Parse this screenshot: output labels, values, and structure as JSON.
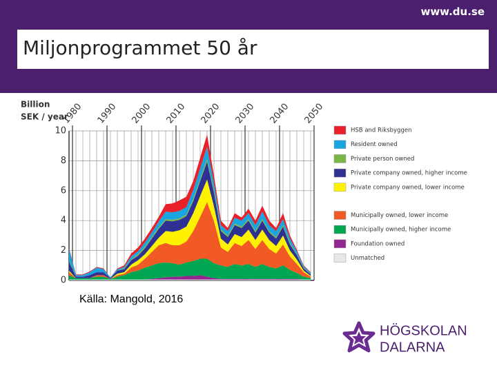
{
  "slide": {
    "url": "www.du.se",
    "title": "Miljonprogrammet 50 år",
    "source": "Källa: Mangold, 2016",
    "logo": [
      "HÖGSKOLAN",
      "DALARNA"
    ]
  },
  "chart_data": {
    "type": "stacked_area",
    "ylabel": [
      "Billion",
      "SEK / year"
    ],
    "xlim": [
      1979,
      2050
    ],
    "xticks": [
      1980,
      1990,
      2000,
      2010,
      2020,
      2030,
      2040,
      2050
    ],
    "ylim": [
      0,
      10
    ],
    "yticks": [
      0,
      2,
      4,
      6,
      8,
      10
    ],
    "grid": true,
    "x": [
      1979,
      1981,
      1983,
      1985,
      1987,
      1989,
      1991,
      1993,
      1995,
      1997,
      1999,
      2001,
      2003,
      2005,
      2007,
      2009,
      2011,
      2013,
      2015,
      2017,
      2019,
      2021,
      2023,
      2025,
      2027,
      2029,
      2031,
      2033,
      2035,
      2037,
      2039,
      2041,
      2043,
      2045,
      2047,
      2049
    ],
    "series": [
      {
        "name": "Unmatched",
        "color": "#e6e7e8",
        "values": [
          0.05,
          0.05,
          0.05,
          0.05,
          0.05,
          0.05,
          0.05,
          0.05,
          0.05,
          0.05,
          0.05,
          0.05,
          0.05,
          0.05,
          0.05,
          0.05,
          0.05,
          0.05,
          0.05,
          0.05,
          0.05,
          0.05,
          0.05,
          0.05,
          0.05,
          0.05,
          0.05,
          0.05,
          0.05,
          0.05,
          0.05,
          0.05,
          0.05,
          0.05,
          0.05,
          0.05
        ]
      },
      {
        "name": "Foundation owned",
        "color": "#92278f",
        "values": [
          0,
          0,
          0,
          0,
          0,
          0,
          0,
          0,
          0,
          0,
          0,
          0,
          0.05,
          0.1,
          0.15,
          0.2,
          0.2,
          0.25,
          0.25,
          0.3,
          0.2,
          0.1,
          0.05,
          0.05,
          0.05,
          0.05,
          0.05,
          0.05,
          0.05,
          0.05,
          0.05,
          0.05,
          0.05,
          0.05,
          0,
          0
        ]
      },
      {
        "name": "Municipally owned, higher income",
        "color": "#00a651",
        "values": [
          0.3,
          0.1,
          0.1,
          0.1,
          0.2,
          0.2,
          0.05,
          0.2,
          0.3,
          0.5,
          0.6,
          0.8,
          0.9,
          1.0,
          1.0,
          0.9,
          0.8,
          0.9,
          1.0,
          1.1,
          1.2,
          1.0,
          0.9,
          0.8,
          1.0,
          0.9,
          1.0,
          0.8,
          1.0,
          0.8,
          0.7,
          0.9,
          0.6,
          0.4,
          0.2,
          0.1
        ]
      },
      {
        "name": "Municipally owned, lower income",
        "color": "#f15a24",
        "values": [
          0.2,
          0,
          0,
          0,
          0.1,
          0.1,
          0,
          0.1,
          0.1,
          0.3,
          0.4,
          0.6,
          0.9,
          1.2,
          1.3,
          1.2,
          1.3,
          1.4,
          2.0,
          2.8,
          3.8,
          2.8,
          1.2,
          1.0,
          1.4,
          1.3,
          1.6,
          1.2,
          1.6,
          1.2,
          1.0,
          1.4,
          0.9,
          0.6,
          0.3,
          0.1
        ]
      },
      {
        "name": "Private company owned, lower income",
        "color": "#fff200",
        "values": [
          0.1,
          0,
          0,
          0,
          0,
          0,
          0,
          0.1,
          0.1,
          0.2,
          0.3,
          0.3,
          0.4,
          0.5,
          0.8,
          0.9,
          1.0,
          1.0,
          1.2,
          1.4,
          1.5,
          1.0,
          0.6,
          0.5,
          0.6,
          0.6,
          0.7,
          0.6,
          0.7,
          0.6,
          0.5,
          0.6,
          0.4,
          0.3,
          0.1,
          0.05
        ]
      },
      {
        "name": "Private company owned, higher income",
        "color": "#2e3192",
        "values": [
          0.6,
          0.1,
          0.1,
          0.2,
          0.2,
          0.2,
          0.05,
          0.2,
          0.2,
          0.3,
          0.3,
          0.4,
          0.5,
          0.6,
          0.7,
          0.7,
          0.7,
          0.7,
          0.8,
          1.0,
          1.2,
          0.9,
          0.5,
          0.5,
          0.6,
          0.6,
          0.6,
          0.5,
          0.6,
          0.5,
          0.5,
          0.6,
          0.4,
          0.3,
          0.15,
          0.1
        ]
      },
      {
        "name": "Private person owned",
        "color": "#7ab648",
        "values": [
          0.1,
          0,
          0,
          0,
          0,
          0,
          0,
          0,
          0.05,
          0.05,
          0.1,
          0.1,
          0.1,
          0.1,
          0.1,
          0.1,
          0.1,
          0.1,
          0.15,
          0.15,
          0.2,
          0.15,
          0.1,
          0.1,
          0.1,
          0.1,
          0.1,
          0.1,
          0.1,
          0.1,
          0.1,
          0.1,
          0.1,
          0.05,
          0.05,
          0
        ]
      },
      {
        "name": "Resident owned",
        "color": "#1aa4e0",
        "values": [
          0.8,
          0.1,
          0.1,
          0.2,
          0.3,
          0.2,
          0.05,
          0.1,
          0.1,
          0.2,
          0.2,
          0.3,
          0.3,
          0.4,
          0.5,
          0.5,
          0.5,
          0.5,
          0.6,
          0.7,
          0.8,
          0.5,
          0.3,
          0.3,
          0.4,
          0.4,
          0.4,
          0.4,
          0.5,
          0.4,
          0.4,
          0.4,
          0.3,
          0.2,
          0.1,
          0.1
        ]
      },
      {
        "name": "HSB and Riksbyggen",
        "color": "#e8202a",
        "values": [
          0.05,
          0.05,
          0.05,
          0.05,
          0.05,
          0.05,
          0,
          0.05,
          0.1,
          0.2,
          0.25,
          0.25,
          0.3,
          0.3,
          0.5,
          0.6,
          0.7,
          0.7,
          0.6,
          0.7,
          0.8,
          0.5,
          0.3,
          0.2,
          0.3,
          0.2,
          0.3,
          0.3,
          0.4,
          0.3,
          0.2,
          0.4,
          0.2,
          0.1,
          0.05,
          0.05
        ]
      }
    ]
  }
}
